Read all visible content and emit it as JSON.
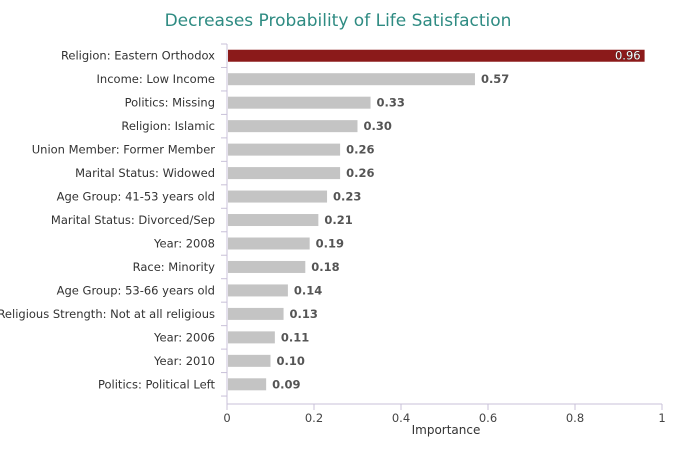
{
  "chart_data": {
    "type": "bar",
    "orientation": "horizontal",
    "title": "Decreases Probability of Life Satisfaction",
    "xlabel": "Importance",
    "ylabel": "",
    "xlim": [
      0,
      1
    ],
    "xticks": [
      "0",
      "0.2",
      "0.4",
      "0.6",
      "0.8",
      "1"
    ],
    "xtick_values": [
      0,
      0.2,
      0.4,
      0.6,
      0.8,
      1
    ],
    "categories": [
      "Religion: Eastern Orthodox",
      "Income: Low Income",
      "Politics: Missing",
      "Religion: Islamic",
      "Union Member: Former Member",
      "Marital Status: Widowed",
      "Age Group: 41-53 years old",
      "Marital Status: Divorced/Sep",
      "Year: 2008",
      "Race: Minority",
      "Age Group: 53-66 years old",
      "Religious Strength: Not at all religious",
      "Year: 2006",
      "Year: 2010",
      "Politics: Political Left"
    ],
    "values": [
      0.96,
      0.57,
      0.33,
      0.3,
      0.26,
      0.26,
      0.23,
      0.21,
      0.19,
      0.18,
      0.14,
      0.13,
      0.11,
      0.1,
      0.09
    ],
    "value_labels": [
      "0.96",
      "0.57",
      "0.33",
      "0.30",
      "0.26",
      "0.26",
      "0.23",
      "0.21",
      "0.19",
      "0.18",
      "0.14",
      "0.13",
      "0.11",
      "0.10",
      "0.09"
    ],
    "highlight_index": 0,
    "colors": {
      "highlight": "#8b1a1a",
      "bar": "#c4c4c4",
      "title": "#2e8b82",
      "axis": "#c8c0d8"
    },
    "grid": false,
    "legend": "none"
  }
}
